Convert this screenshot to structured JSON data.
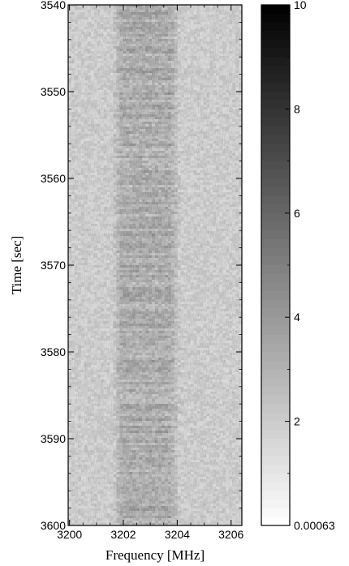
{
  "chart_data": {
    "type": "heatmap",
    "title": "",
    "xlabel": "Frequency [MHz]",
    "ylabel": "Time [sec]",
    "xlim": [
      3199.95,
      3206.4
    ],
    "ylim": [
      3600,
      3540
    ],
    "x_ticks": [
      3200,
      3202,
      3204,
      3206
    ],
    "x_tick_labels": [
      "3200",
      "3202",
      "3204",
      "3206"
    ],
    "y_ticks": [
      3540,
      3550,
      3560,
      3570,
      3580,
      3590,
      3600
    ],
    "y_tick_labels": [
      "3540",
      "3550",
      "3560",
      "3570",
      "3580",
      "3590",
      "3600"
    ],
    "colorbar": {
      "colormap": "grayscale (white = low, black = high)",
      "min": 0.00063,
      "max": 10,
      "tick_values": [
        0.00063,
        2,
        4,
        6,
        8,
        10
      ],
      "tick_labels": [
        "0.00063",
        "2",
        "4",
        "6",
        "8",
        "10"
      ]
    },
    "description_values": {
      "background_level": 1.8,
      "band_level": 3.2,
      "band_center_mhz": 3202.9,
      "band_start_mhz": 3201.6,
      "band_end_mhz": 3204.1
    }
  }
}
